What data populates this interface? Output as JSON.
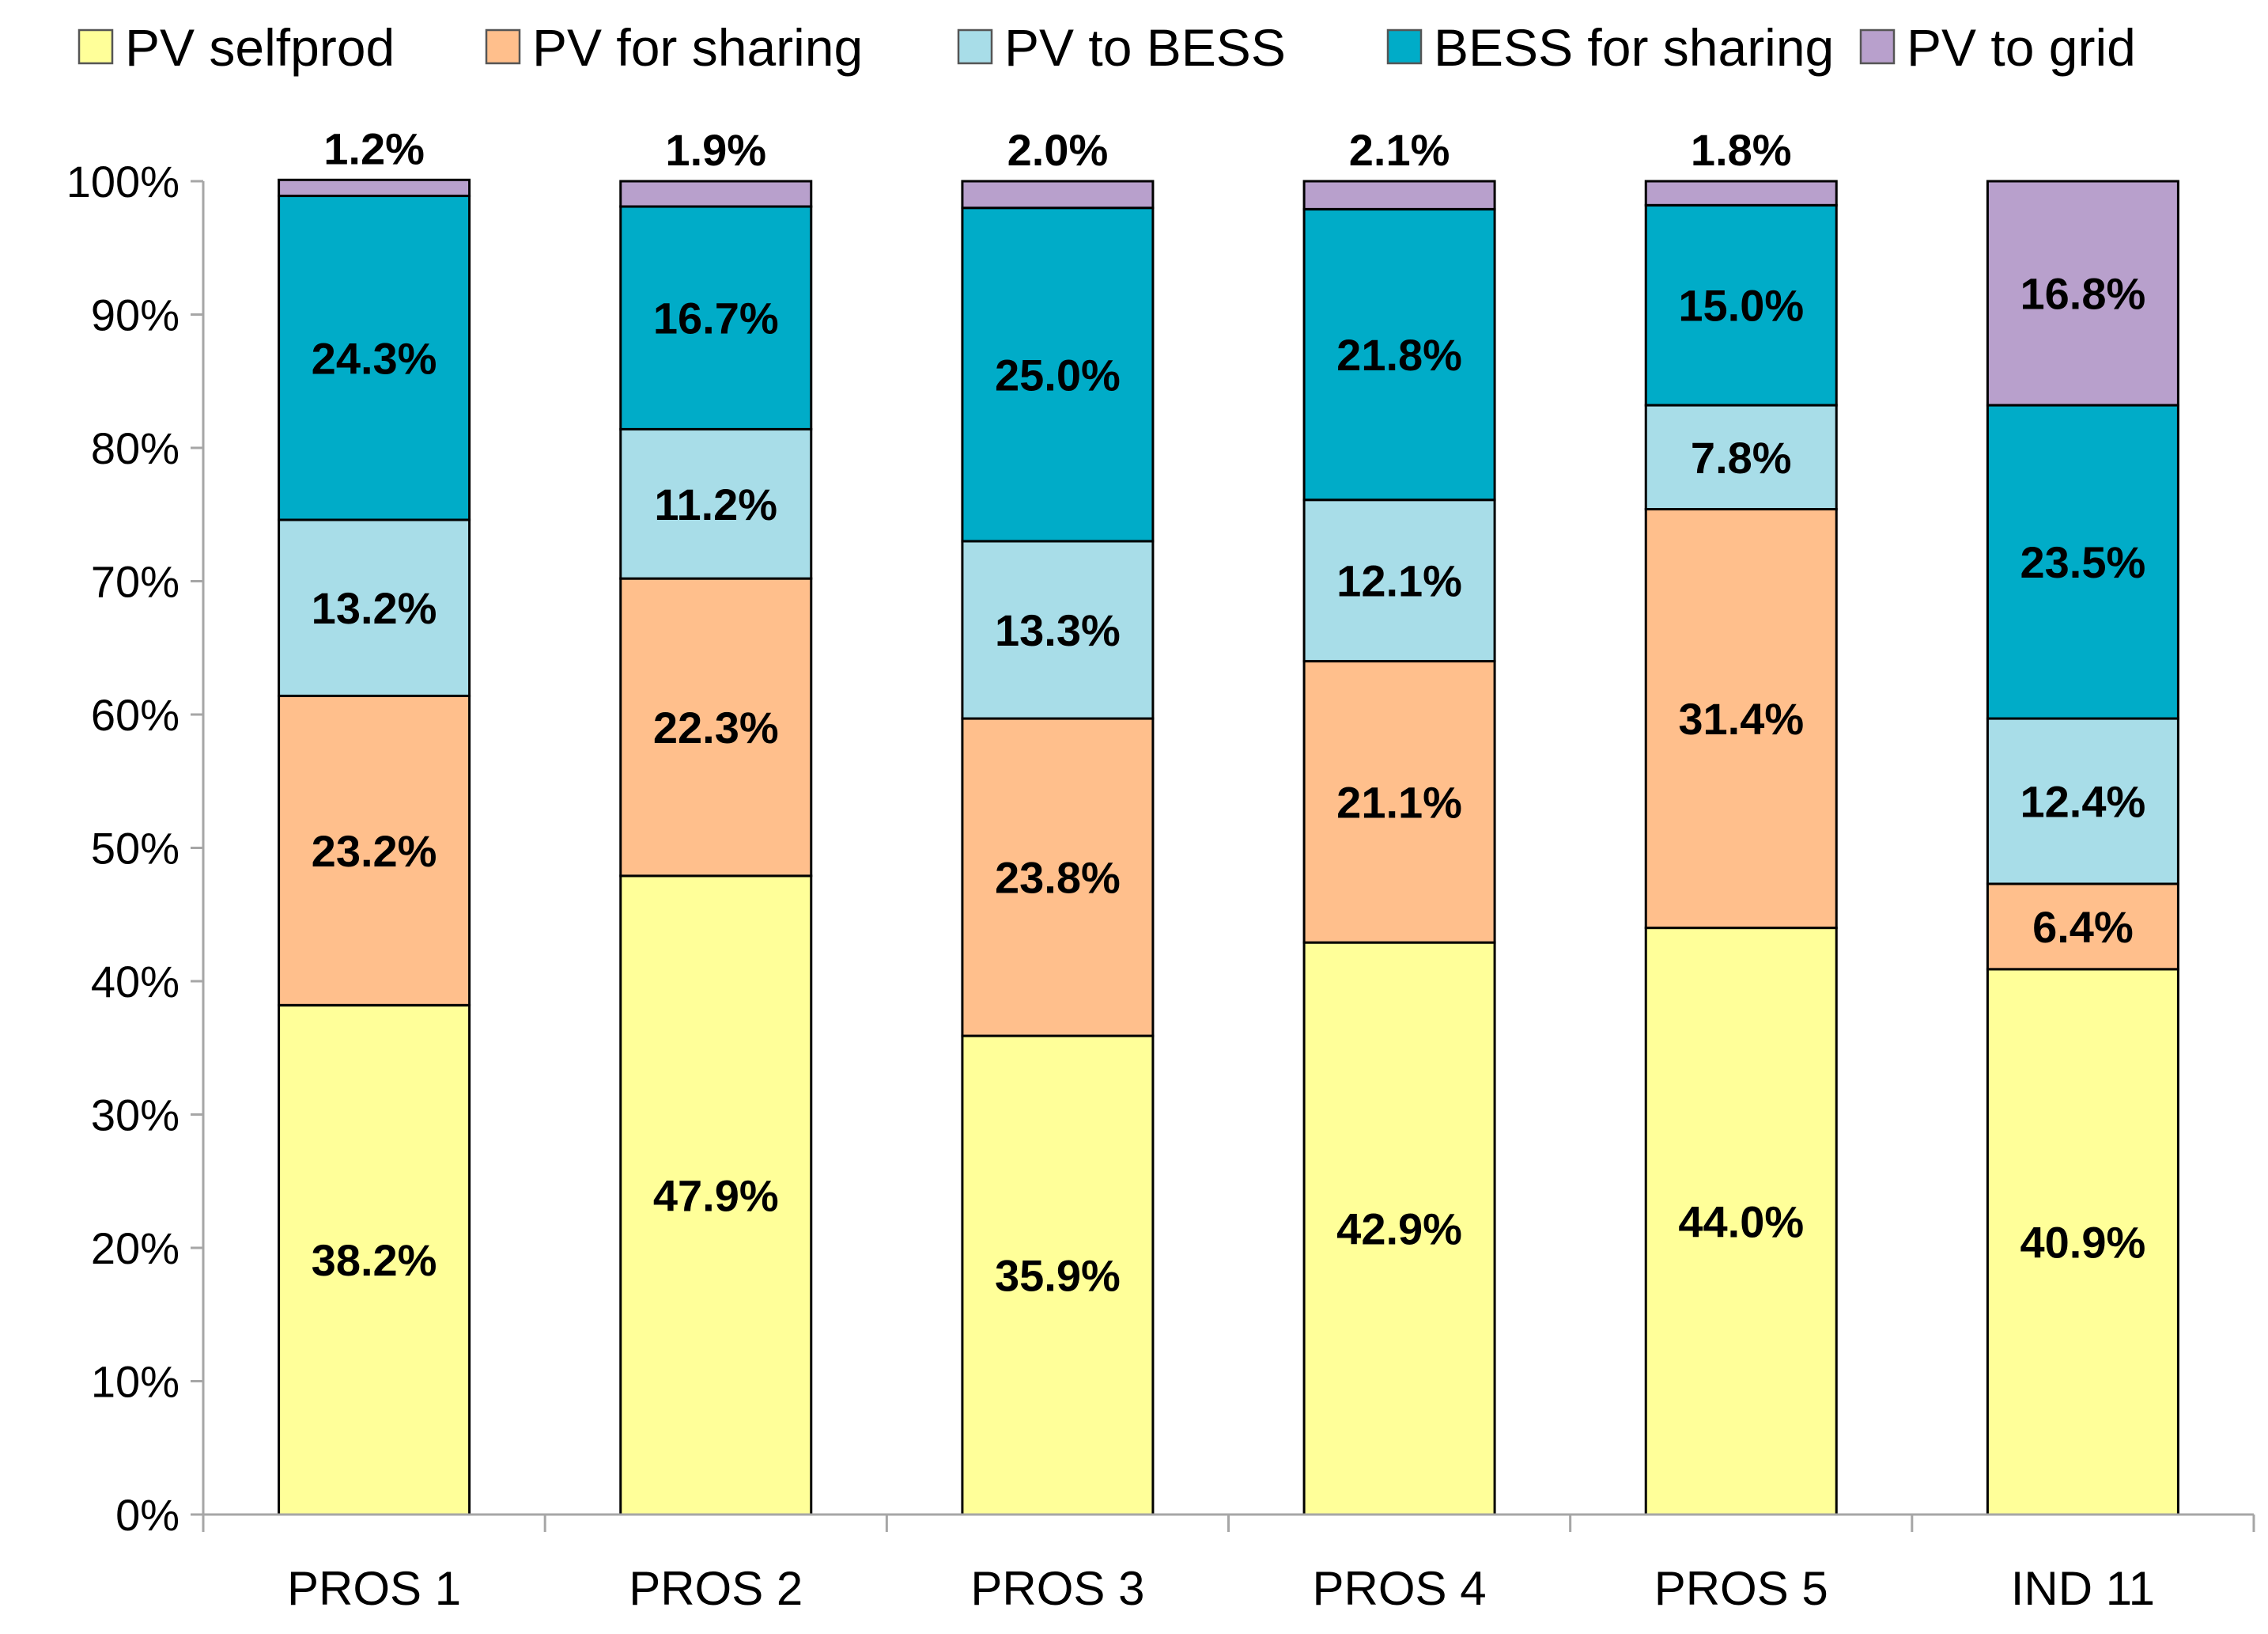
{
  "chart_data": {
    "type": "bar",
    "stacked": true,
    "title": "",
    "xlabel": "",
    "ylabel": "",
    "ylim": [
      0,
      100
    ],
    "y_ticks": [
      "0%",
      "10%",
      "20%",
      "30%",
      "40%",
      "50%",
      "60%",
      "70%",
      "80%",
      "90%",
      "100%"
    ],
    "categories": [
      "PROS 1",
      "PROS 2",
      "PROS 3",
      "PROS 4",
      "PROS 5",
      "IND 11"
    ],
    "legend_position": "top",
    "series": [
      {
        "name": "PV selfprod",
        "color": "#FFFF99",
        "values": [
          38.2,
          47.9,
          35.9,
          42.9,
          44.0,
          40.9
        ],
        "labels": [
          "38.2%",
          "47.9%",
          "35.9%",
          "42.9%",
          "44.0%",
          "40.9%"
        ]
      },
      {
        "name": "PV for sharing",
        "color": "#FFBF8C",
        "values": [
          23.2,
          22.3,
          23.8,
          21.1,
          31.4,
          6.4
        ],
        "labels": [
          "23.2%",
          "22.3%",
          "23.8%",
          "21.1%",
          "31.4%",
          "6.4%"
        ]
      },
      {
        "name": "PV to BESS",
        "color": "#A8DDE8",
        "values": [
          13.2,
          11.2,
          13.3,
          12.1,
          7.8,
          12.4
        ],
        "labels": [
          "13.2%",
          "11.2%",
          "13.3%",
          "12.1%",
          "7.8%",
          "12.4%"
        ]
      },
      {
        "name": "BESS for sharing",
        "color": "#00ACC8",
        "values": [
          24.3,
          16.7,
          25.0,
          21.8,
          15.0,
          23.5
        ],
        "labels": [
          "24.3%",
          "16.7%",
          "25.0%",
          "21.8%",
          "15.0%",
          "23.5%"
        ]
      },
      {
        "name": "PV to grid",
        "color": "#B8A0CC",
        "values": [
          1.2,
          1.9,
          2.0,
          2.1,
          1.8,
          16.8
        ],
        "labels": [
          "1.2%",
          "1.9%",
          "2.0%",
          "2.1%",
          "1.8%",
          "16.8%"
        ]
      }
    ]
  }
}
